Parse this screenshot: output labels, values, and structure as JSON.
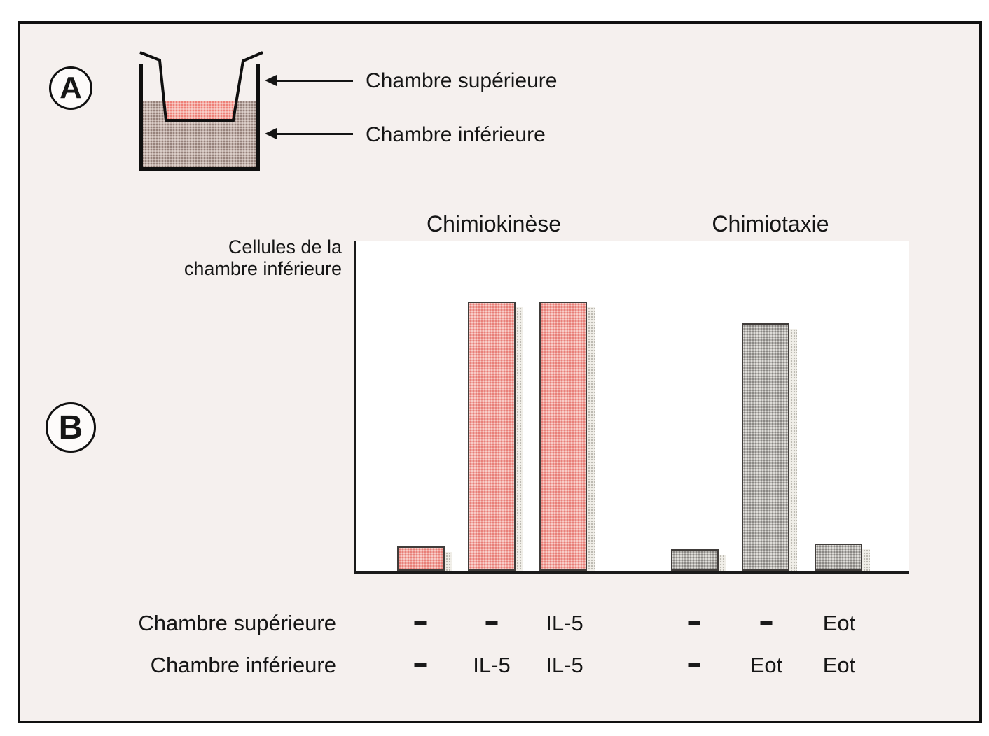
{
  "panel_a": {
    "label": "A",
    "upper_chamber_label": "Chambre supérieure",
    "lower_chamber_label": "Chambre inférieure"
  },
  "panel_b": {
    "label": "B"
  },
  "chart_data": {
    "type": "bar",
    "title": "",
    "ylabel": "Cellules de la chambre inférieure",
    "ylabel_lines": [
      "Cellules de la",
      "chambre inférieure"
    ],
    "group_titles": [
      "Chimiokinèse",
      "Chimiotaxie"
    ],
    "y_axis": {
      "numeric_ticks": false,
      "relative_range": [
        0,
        1
      ]
    },
    "grid": false,
    "legend": false,
    "groups": [
      {
        "title": "Chimiokinèse",
        "bar_color": "#f2a7a2",
        "shadow_color": "#e0ded6",
        "values": [
          0.09,
          1.0,
          1.0
        ]
      },
      {
        "title": "Chimiotaxie",
        "bar_color": "#b8b5b2",
        "shadow_color": "#e0ded6",
        "values": [
          0.08,
          0.92,
          0.1
        ]
      }
    ],
    "condition_rows": [
      {
        "label": "Chambre supérieure",
        "values": [
          "-",
          "-",
          "IL-5",
          "-",
          "-",
          "Eot"
        ]
      },
      {
        "label": "Chambre inférieure",
        "values": [
          "-",
          "IL-5",
          "IL-5",
          "-",
          "Eot",
          "Eot"
        ]
      }
    ]
  },
  "colors": {
    "frame_background": "#f5f0ee",
    "plot_background": "#ffffff",
    "upper_chamber_liquid": "#f2a5a0",
    "lower_chamber_liquid": "#c4ada6",
    "line_color": "#141414"
  }
}
